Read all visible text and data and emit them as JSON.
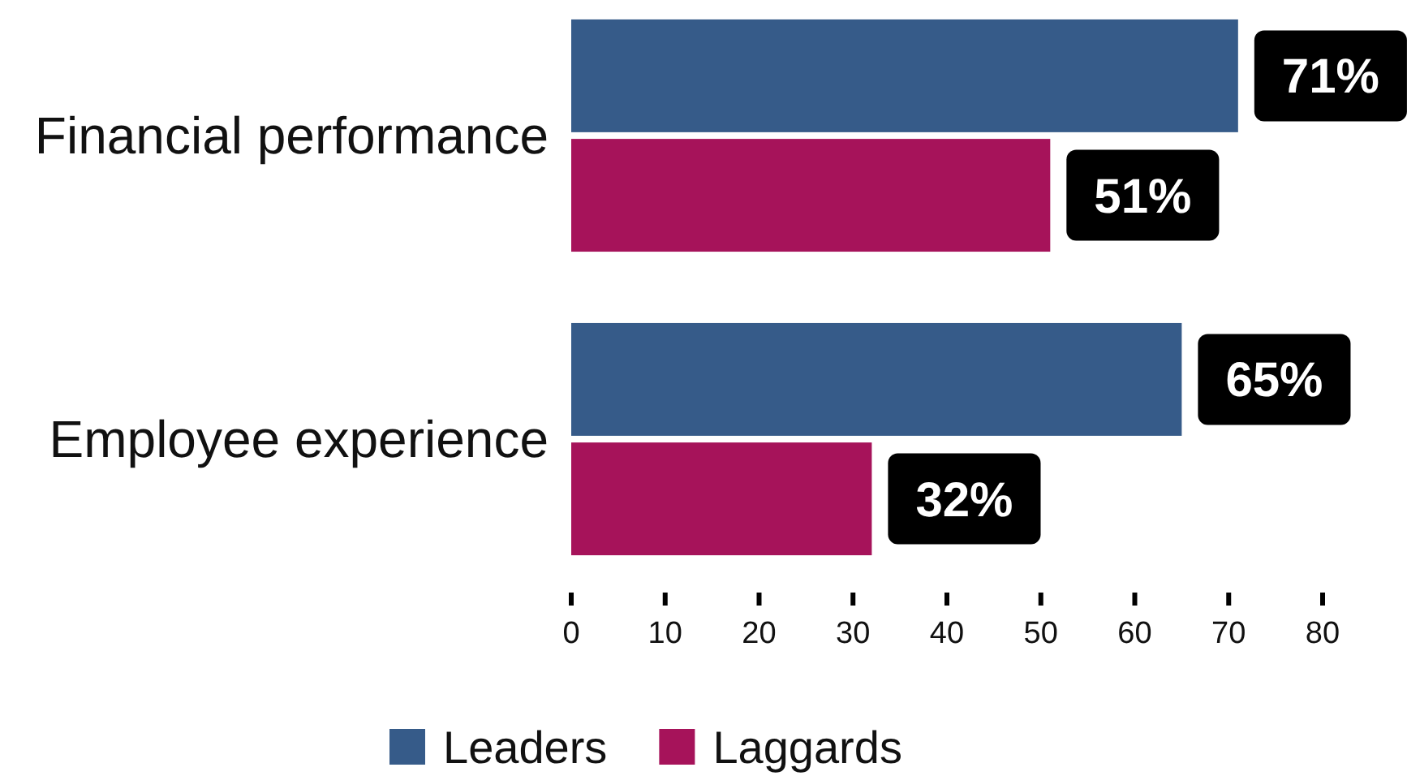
{
  "chart_data": {
    "type": "bar",
    "orientation": "horizontal",
    "categories": [
      "Financial performance",
      "Employee experience"
    ],
    "series": [
      {
        "name": "Leaders",
        "color": "#365b89",
        "values": [
          71,
          65
        ],
        "value_labels": [
          "71%",
          "65%"
        ]
      },
      {
        "name": "Laggards",
        "color": "#a6135a",
        "values": [
          51,
          32
        ],
        "value_labels": [
          "51%",
          "32%"
        ]
      }
    ],
    "xlim": [
      0,
      80
    ],
    "xticks": [
      0,
      10,
      20,
      30,
      40,
      50,
      60,
      70,
      80
    ],
    "legend": "bottom"
  }
}
